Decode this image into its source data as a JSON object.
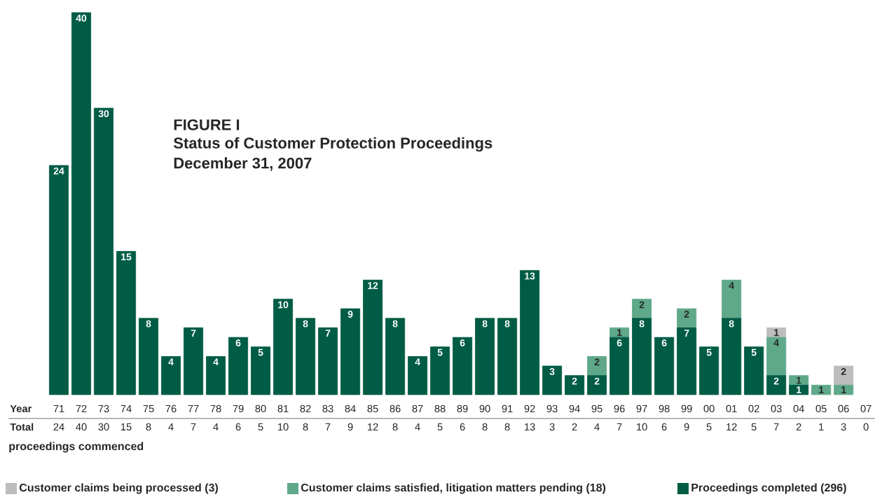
{
  "chart_data": {
    "type": "bar",
    "stacked": true,
    "title": "FIGURE I",
    "subtitle": "Status of Customer Protection Proceedings",
    "annotations": [
      "December 31, 2007",
      "Year",
      "Total",
      "proceedings commenced"
    ],
    "categories": [
      "71",
      "72",
      "73",
      "74",
      "75",
      "76",
      "77",
      "78",
      "79",
      "80",
      "81",
      "82",
      "83",
      "84",
      "85",
      "86",
      "87",
      "88",
      "89",
      "90",
      "91",
      "92",
      "93",
      "94",
      "95",
      "96",
      "97",
      "98",
      "99",
      "00",
      "01",
      "02",
      "03",
      "04",
      "05",
      "06",
      "07"
    ],
    "series": [
      {
        "name": "Proceedings completed (296)",
        "color": "#005c45",
        "values": [
          24,
          40,
          30,
          15,
          8,
          4,
          7,
          4,
          6,
          5,
          10,
          8,
          7,
          9,
          12,
          8,
          4,
          5,
          6,
          8,
          8,
          13,
          3,
          2,
          2,
          6,
          8,
          6,
          7,
          5,
          8,
          5,
          2,
          1,
          null,
          null,
          0
        ],
        "value_labels": [
          "24",
          "40",
          "30",
          "15",
          "8",
          "4",
          "7",
          "4",
          "6",
          "5",
          "10",
          "8",
          "7",
          "9",
          "12",
          "8",
          "4",
          "5",
          "6",
          "8",
          "8",
          "13",
          "3",
          "2",
          "2",
          "6",
          "8",
          "6",
          "7",
          "5",
          "8",
          "5",
          "2",
          "1",
          null,
          null,
          null
        ]
      },
      {
        "name": "Customer claims satisfied, litigation matters pending (18)",
        "color": "#5fa88a",
        "values": [
          null,
          null,
          null,
          null,
          null,
          null,
          null,
          null,
          null,
          null,
          null,
          null,
          null,
          null,
          null,
          null,
          null,
          null,
          null,
          null,
          null,
          null,
          null,
          null,
          2,
          1,
          2,
          null,
          2,
          null,
          4,
          null,
          4,
          1,
          1,
          1,
          null
        ]
      },
      {
        "name": "Customer claims being processed (3)",
        "color": "#bdbdbd",
        "values": [
          null,
          null,
          null,
          null,
          null,
          null,
          null,
          null,
          null,
          null,
          null,
          null,
          null,
          null,
          null,
          null,
          null,
          null,
          null,
          null,
          null,
          null,
          null,
          null,
          null,
          null,
          null,
          null,
          null,
          null,
          null,
          null,
          1,
          null,
          null,
          2,
          null
        ]
      }
    ],
    "totals": [
      "24",
      "40",
      "30",
      "15",
      "8",
      "4",
      "7",
      "4",
      "6",
      "5",
      "10",
      "8",
      "7",
      "9",
      "12",
      "8",
      "4",
      "5",
      "6",
      "8",
      "8",
      "13",
      "3",
      "2",
      "4",
      "7",
      "10",
      "6",
      "9",
      "5",
      "12",
      "5",
      "7",
      "2",
      "1",
      "3",
      "0"
    ],
    "data_labels": true,
    "legend": "bottom"
  }
}
